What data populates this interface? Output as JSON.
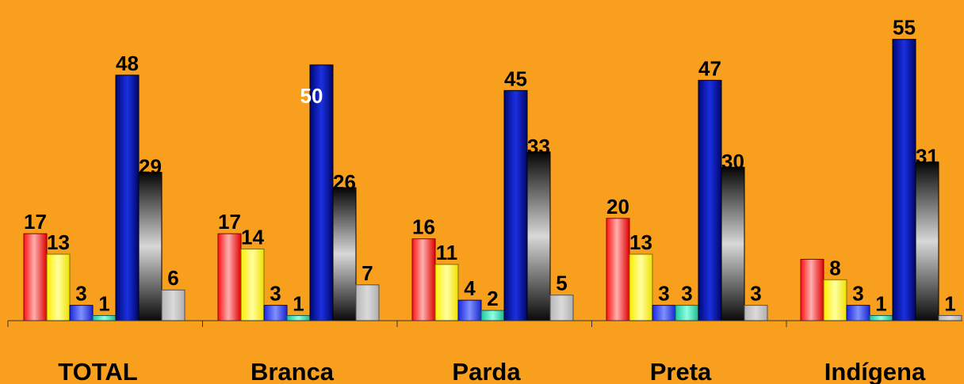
{
  "chart_data": {
    "type": "bar",
    "categories": [
      "TOTAL",
      "Branca",
      "Parda",
      "Preta",
      "Indígena"
    ],
    "series": [
      {
        "values": [
          17,
          17,
          16,
          20,
          12
        ],
        "color": "red",
        "labels": [
          "17",
          "17",
          "16",
          "20",
          ""
        ]
      },
      {
        "values": [
          13,
          14,
          11,
          13,
          8
        ],
        "color": "yellow",
        "labels": [
          "13",
          "14",
          "11",
          "13",
          "8"
        ]
      },
      {
        "values": [
          3,
          3,
          4,
          3,
          3
        ],
        "color": "medium-blue",
        "labels": [
          "3",
          "3",
          "4",
          "3",
          "3"
        ]
      },
      {
        "values": [
          1,
          1,
          2,
          3,
          1
        ],
        "color": "teal",
        "labels": [
          "1",
          "1",
          "2",
          "3",
          "1"
        ]
      },
      {
        "values": [
          48,
          50,
          45,
          47,
          55
        ],
        "color": "navy",
        "labels": [
          "48",
          "50",
          "45",
          "47",
          "55"
        ]
      },
      {
        "values": [
          29,
          26,
          33,
          30,
          31
        ],
        "color": "black-silver",
        "labels": [
          "29",
          "26",
          "33",
          "30",
          "31"
        ]
      },
      {
        "values": [
          6,
          7,
          5,
          3,
          1
        ],
        "color": "gray",
        "labels": [
          "6",
          "7",
          "5",
          "3",
          "1"
        ]
      }
    ],
    "title": "",
    "xlabel": "",
    "ylabel": "",
    "ylim": [
      0,
      60
    ],
    "grid": false,
    "legend": "none"
  },
  "colors": {
    "background": "#f8a01e",
    "red": "#ff2a2a",
    "yellow": "#ffff33",
    "medium-blue": "#3344ff",
    "teal": "#44e0c0",
    "navy": "#0a1aaa",
    "black-silver": "#202020",
    "gray": "#c0c0c0"
  }
}
